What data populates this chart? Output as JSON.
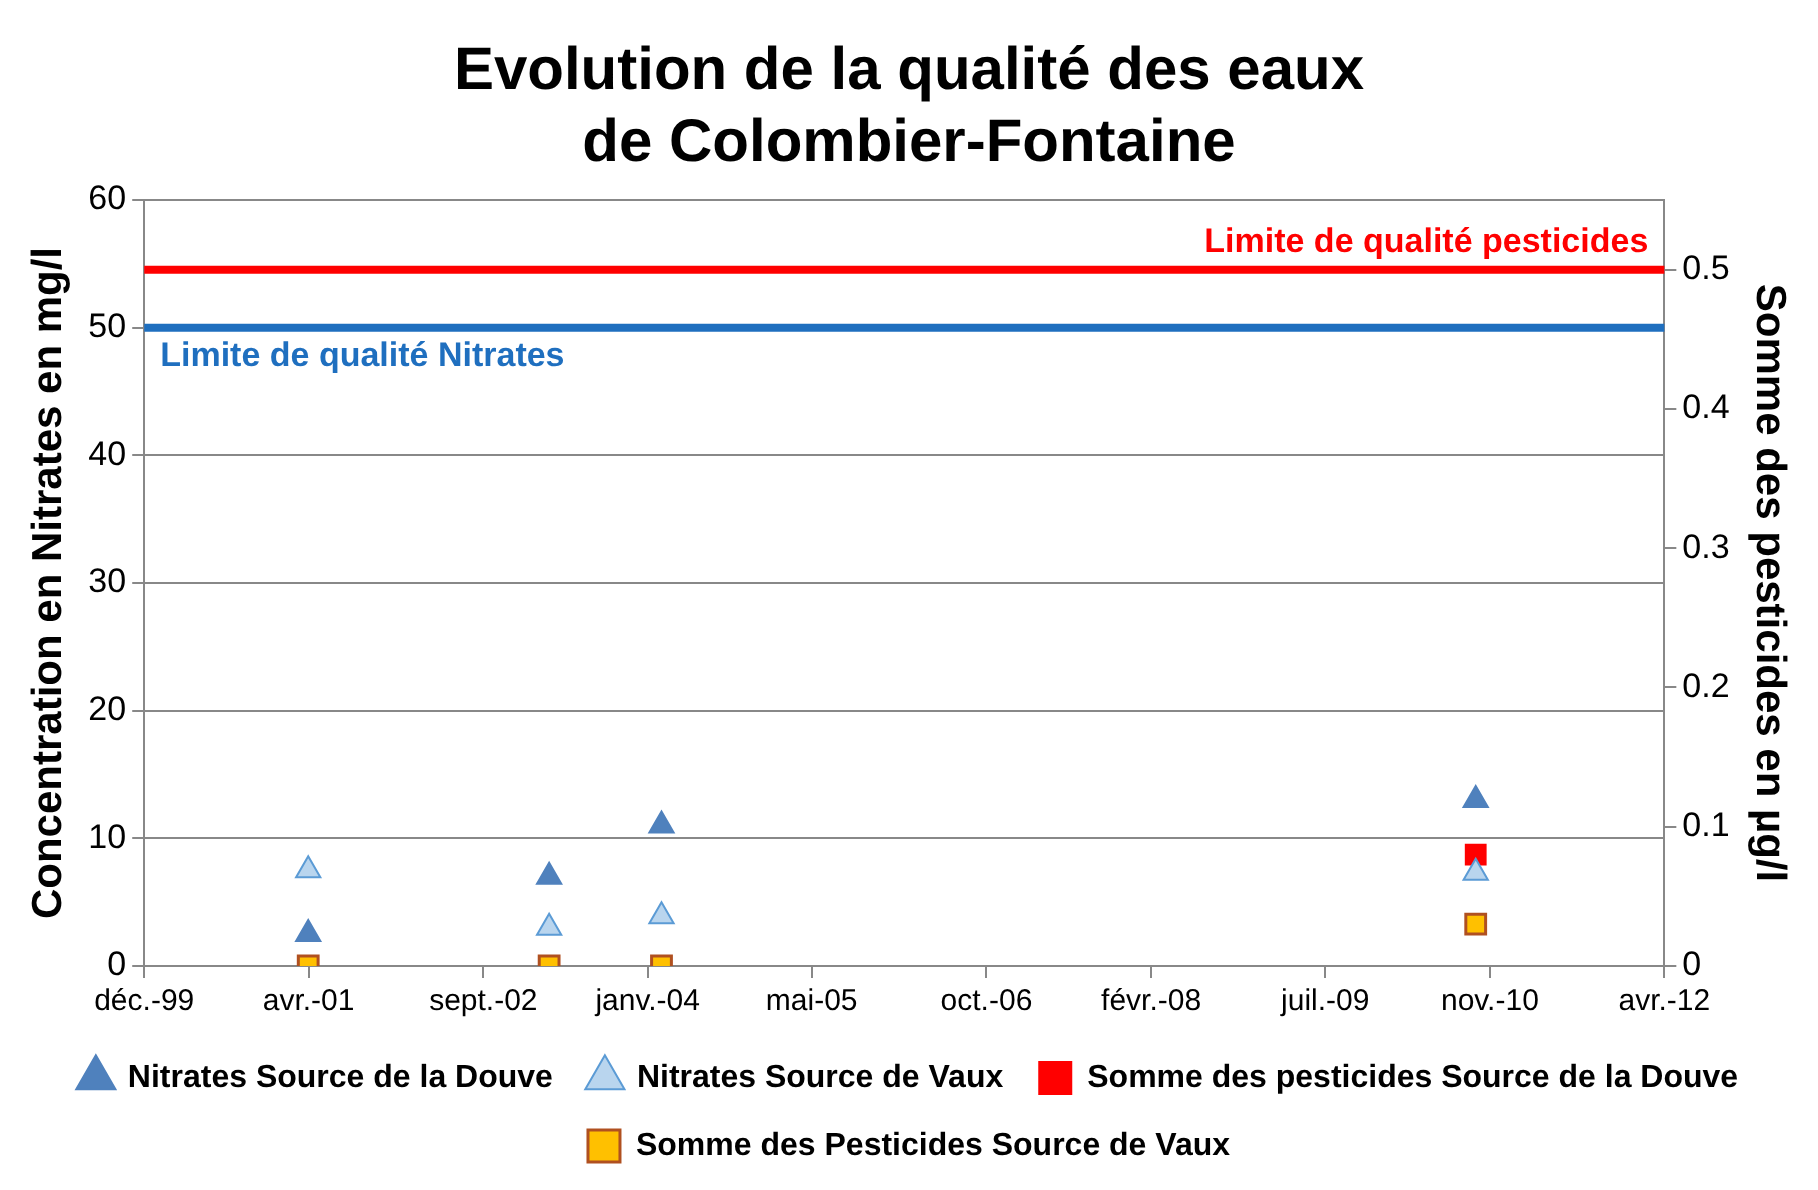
{
  "chart_data": {
    "type": "scatter",
    "title": "Evolution de la qualité des eaux\nde Colombier-Fontaine",
    "ylabel": "Concentration en Nitrates en mg/l",
    "y2label": "Somme des pesticides en µg/l",
    "xlim": [
      "1999-12-01",
      "2012-04-01"
    ],
    "xticks": [
      {
        "value": "1999-12-01",
        "label": "déc.-99"
      },
      {
        "value": "2001-04-01",
        "label": "avr.-01"
      },
      {
        "value": "2002-09-01",
        "label": "sept.-02"
      },
      {
        "value": "2004-01-01",
        "label": "janv.-04"
      },
      {
        "value": "2005-05-01",
        "label": "mai-05"
      },
      {
        "value": "2006-10-01",
        "label": "oct.-06"
      },
      {
        "value": "2008-02-01",
        "label": "févr.-08"
      },
      {
        "value": "2009-07-01",
        "label": "juil.-09"
      },
      {
        "value": "2010-11-01",
        "label": "nov.-10"
      },
      {
        "value": "2012-04-01",
        "label": "avr.-12"
      }
    ],
    "ylim": [
      0,
      60
    ],
    "yticks": [
      0,
      10,
      20,
      30,
      40,
      50,
      60
    ],
    "y2lim": [
      0,
      0.55
    ],
    "y2ticks": [
      0,
      0.1,
      0.2,
      0.3,
      0.4,
      0.5
    ],
    "grid": "y",
    "legend": "bottom",
    "series": [
      {
        "name": "Nitrates Source de la Douve",
        "color": "#4f81bd",
        "marker": "triangle",
        "x": [
          "2001-03-31",
          "2003-03-15",
          "2004-02-11",
          "2010-09-20"
        ],
        "values": [
          2.5,
          7,
          11,
          13
        ]
      },
      {
        "name": "Nitrates Source de Vaux",
        "color": "#b9d5ee",
        "marker": "triangle",
        "x": [
          "2001-03-31",
          "2003-03-15",
          "2004-02-11",
          "2010-09-20"
        ],
        "values": [
          7.5,
          3,
          3.9,
          7.3
        ]
      },
      {
        "name": "Somme des pesticides Source de la Douve",
        "color": "#ff0000",
        "marker": "square",
        "axis": "y2",
        "x": [
          "2010-09-20"
        ],
        "values": [
          0.08
        ]
      },
      {
        "name": "Somme des Pesticides Source de Vaux",
        "color": "#ffc000",
        "marker": "square",
        "axis": "y2",
        "x": [
          "2001-03-31",
          "2003-03-15",
          "2004-02-11",
          "2010-09-20"
        ],
        "values": [
          0,
          0,
          0,
          0.03
        ]
      }
    ],
    "ref_lines": [
      {
        "axis": "y",
        "value": 50,
        "label": "Limite de qualité Nitrates",
        "color": "#1f6fbf"
      },
      {
        "axis": "y2",
        "value": 0.5,
        "label": "Limite de qualité pesticides",
        "color": "#ff0000"
      }
    ]
  }
}
